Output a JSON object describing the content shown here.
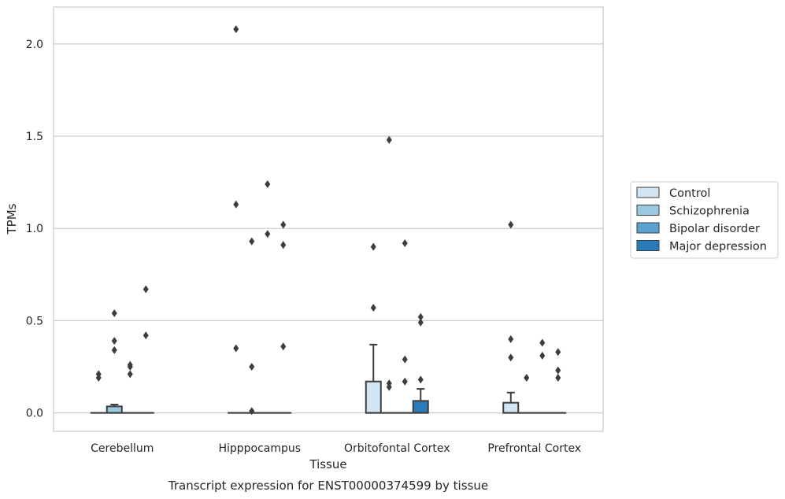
{
  "chart_data": {
    "type": "box",
    "caption": "Transcript expression for ENST00000374599 by tissue",
    "xlabel": "Tissue",
    "ylabel": "TPMs",
    "ylim": [
      -0.1,
      2.2
    ],
    "yticks": [
      0.0,
      0.5,
      1.0,
      1.5,
      2.0
    ],
    "ytick_labels": [
      "0.0",
      "0.5",
      "1.0",
      "1.5",
      "2.0"
    ],
    "grid": true,
    "legend_position": "right",
    "categories": [
      "Cerebellum",
      "Hipppocampus",
      "Orbitofontal Cortex",
      "Prefrontal Cortex"
    ],
    "series": [
      {
        "name": "Control",
        "color": "#d3e4f3",
        "boxes": [
          {
            "q1": 0,
            "median": 0,
            "q3": 0,
            "whislo": 0,
            "whishi": 0,
            "fliers": [
              0.21,
              0.19
            ]
          },
          {
            "q1": 0,
            "median": 0,
            "q3": 0,
            "whislo": 0,
            "whishi": 0,
            "fliers": [
              2.08,
              1.13,
              0.35
            ]
          },
          {
            "q1": 0,
            "median": 0,
            "q3": 0.17,
            "whislo": 0,
            "whishi": 0.37,
            "fliers": [
              0.9,
              0.57
            ]
          },
          {
            "q1": 0,
            "median": 0,
            "q3": 0.055,
            "whislo": 0,
            "whishi": 0.11,
            "fliers": [
              1.02,
              0.4,
              0.3
            ]
          }
        ]
      },
      {
        "name": "Schizophrenia",
        "color": "#9ac8e0",
        "boxes": [
          {
            "q1": 0,
            "median": 0,
            "q3": 0.035,
            "whislo": 0,
            "whishi": 0.045,
            "fliers": [
              0.54,
              0.39,
              0.34
            ]
          },
          {
            "q1": 0,
            "median": 0,
            "q3": 0,
            "whislo": 0,
            "whishi": 0,
            "fliers": [
              0.93,
              0.25,
              0.01
            ]
          },
          {
            "q1": 0,
            "median": 0,
            "q3": 0,
            "whislo": 0,
            "whishi": 0,
            "fliers": [
              1.48,
              0.16,
              0.14
            ]
          },
          {
            "q1": 0,
            "median": 0,
            "q3": 0,
            "whislo": 0,
            "whishi": 0,
            "fliers": [
              0.19
            ]
          }
        ]
      },
      {
        "name": "Bipolar disorder",
        "color": "#5ba3cf",
        "boxes": [
          {
            "q1": 0,
            "median": 0,
            "q3": 0,
            "whislo": 0,
            "whishi": 0,
            "fliers": [
              0.26,
              0.25,
              0.21
            ]
          },
          {
            "q1": 0,
            "median": 0,
            "q3": 0,
            "whislo": 0,
            "whishi": 0,
            "fliers": [
              1.24,
              0.97
            ]
          },
          {
            "q1": 0,
            "median": 0,
            "q3": 0,
            "whislo": 0,
            "whishi": 0,
            "fliers": [
              0.92,
              0.29,
              0.17
            ]
          },
          {
            "q1": 0,
            "median": 0,
            "q3": 0,
            "whislo": 0,
            "whishi": 0,
            "fliers": [
              0.38,
              0.31
            ]
          }
        ]
      },
      {
        "name": "Major depression",
        "color": "#2b7bba",
        "boxes": [
          {
            "q1": 0,
            "median": 0,
            "q3": 0,
            "whislo": 0,
            "whishi": 0,
            "fliers": [
              0.67,
              0.42
            ]
          },
          {
            "q1": 0,
            "median": 0,
            "q3": 0,
            "whislo": 0,
            "whishi": 0,
            "fliers": [
              1.02,
              0.91,
              0.36
            ]
          },
          {
            "q1": 0,
            "median": 0,
            "q3": 0.065,
            "whislo": 0,
            "whishi": 0.13,
            "fliers": [
              0.52,
              0.49,
              0.18
            ]
          },
          {
            "q1": 0,
            "median": 0,
            "q3": 0,
            "whislo": 0,
            "whishi": 0,
            "fliers": [
              0.33,
              0.23,
              0.19
            ]
          }
        ]
      }
    ]
  }
}
